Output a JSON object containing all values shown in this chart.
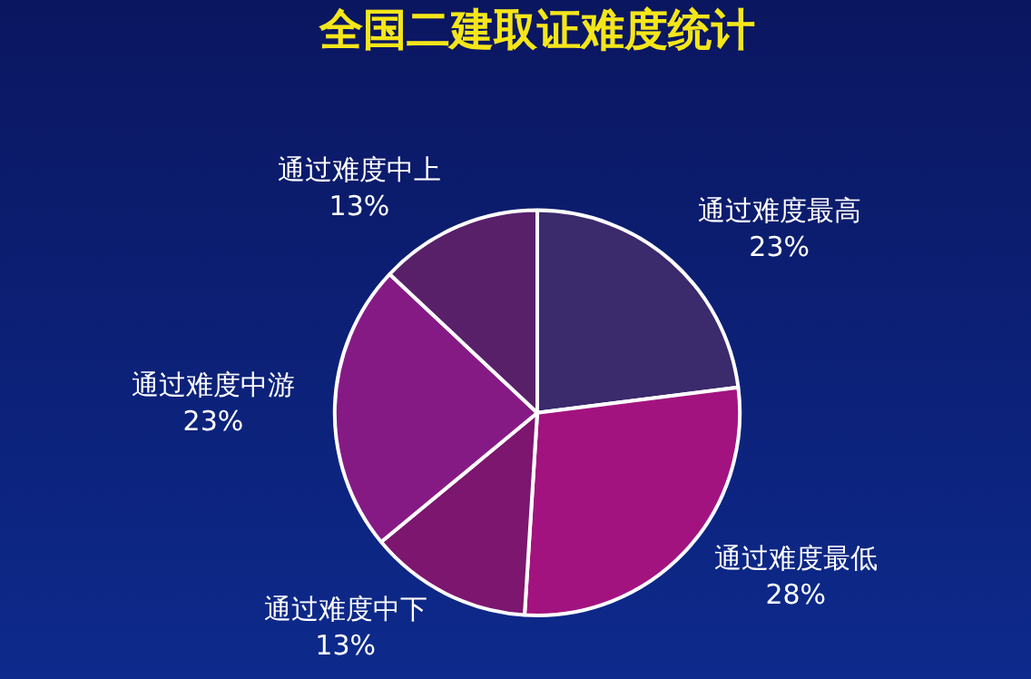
{
  "chart_data": {
    "type": "pie",
    "title": "全国二建取证难度统计",
    "categories": [
      "通过难度最高",
      "通过难度最低",
      "通过难度中下",
      "通过难度中游",
      "通过难度中上"
    ],
    "values": [
      23,
      28,
      13,
      23,
      13
    ],
    "value_labels": [
      "23%",
      "28%",
      "13%",
      "23%",
      "13%"
    ],
    "colors": [
      "#3b2a6c",
      "#a3137f",
      "#7c166f",
      "#861a85",
      "#59206a"
    ],
    "legend": false
  }
}
